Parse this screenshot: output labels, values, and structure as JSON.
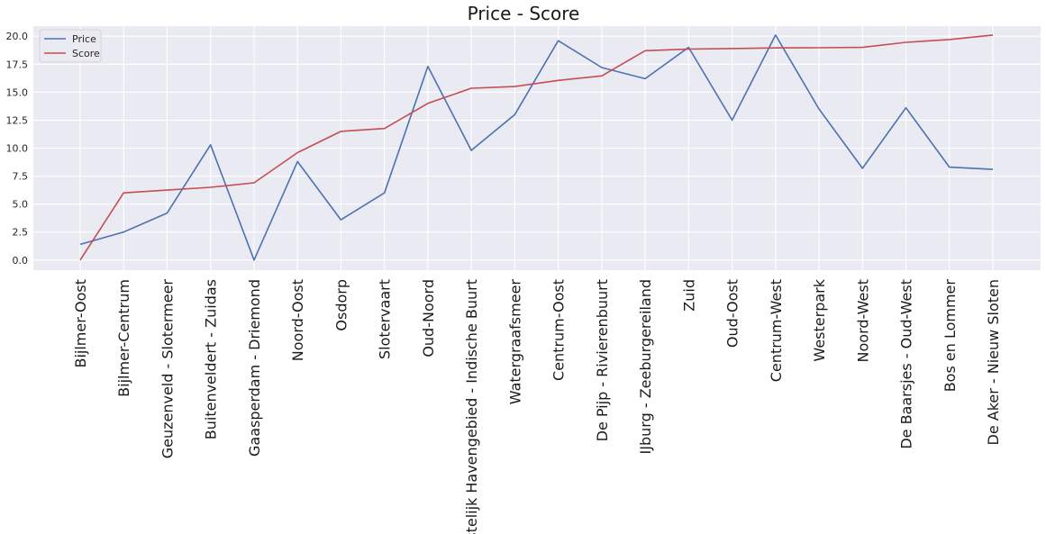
{
  "chart_data": {
    "type": "line",
    "title": "Price - Score",
    "xlabel": "",
    "ylabel": "",
    "ylim": [
      -0.9,
      20.9
    ],
    "yticks": [
      "0.0",
      "2.5",
      "5.0",
      "7.5",
      "10.0",
      "12.5",
      "15.0",
      "17.5",
      "20.0"
    ],
    "grid": true,
    "legend": "top-left",
    "categories": [
      "Bijlmer-Oost",
      "Bijlmer-Centrum",
      "Geuzenveld - Slotermeer",
      "Buitenveldert - Zuidas",
      "Gaasperdam - Driemond",
      "Noord-Oost",
      "Osdorp",
      "Slotervaart",
      "Oud-Noord",
      "Oostelijk Havengebied - Indische Buurt",
      "Watergraafsmeer",
      "Centrum-Oost",
      "De Pijp - Rivierenbuurt",
      "IJburg - Zeeburgereiland",
      "Zuid",
      "Oud-Oost",
      "Centrum-West",
      "Westerpark",
      "Noord-West",
      "De Baarsjes - Oud-West",
      "Bos en Lommer",
      "De Aker - Nieuw Sloten"
    ],
    "series": [
      {
        "name": "Price",
        "color": "#4c72b0",
        "values": [
          1.4,
          2.5,
          4.2,
          10.3,
          0.0,
          8.8,
          3.6,
          6.0,
          17.3,
          9.8,
          13.0,
          19.6,
          17.2,
          16.2,
          19.0,
          12.5,
          20.1,
          13.5,
          8.2,
          13.6,
          8.3,
          8.1
        ]
      },
      {
        "name": "Score",
        "color": "#c44e52",
        "values": [
          0.0,
          6.0,
          6.25,
          6.5,
          6.9,
          9.6,
          11.5,
          11.75,
          14.0,
          15.35,
          15.5,
          16.05,
          16.45,
          18.7,
          18.85,
          18.9,
          18.95,
          18.97,
          19.0,
          19.45,
          19.7,
          20.1
        ]
      }
    ]
  }
}
